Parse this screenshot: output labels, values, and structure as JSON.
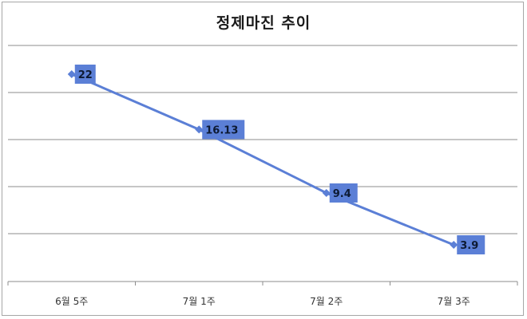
{
  "chart_data": {
    "type": "line",
    "title": "정제마진 추이",
    "categories": [
      "6월 5주",
      "7월 1주",
      "7월 2주",
      "7월 3주"
    ],
    "series": [
      {
        "name": "정제마진",
        "values": [
          22,
          16.13,
          9.4,
          3.9
        ],
        "color": "#5b7fd6"
      }
    ],
    "data_labels": [
      "22",
      "16.13",
      "9.4",
      "3.9"
    ],
    "xlabel": "",
    "ylabel": "",
    "grid": true,
    "legend": "none"
  }
}
